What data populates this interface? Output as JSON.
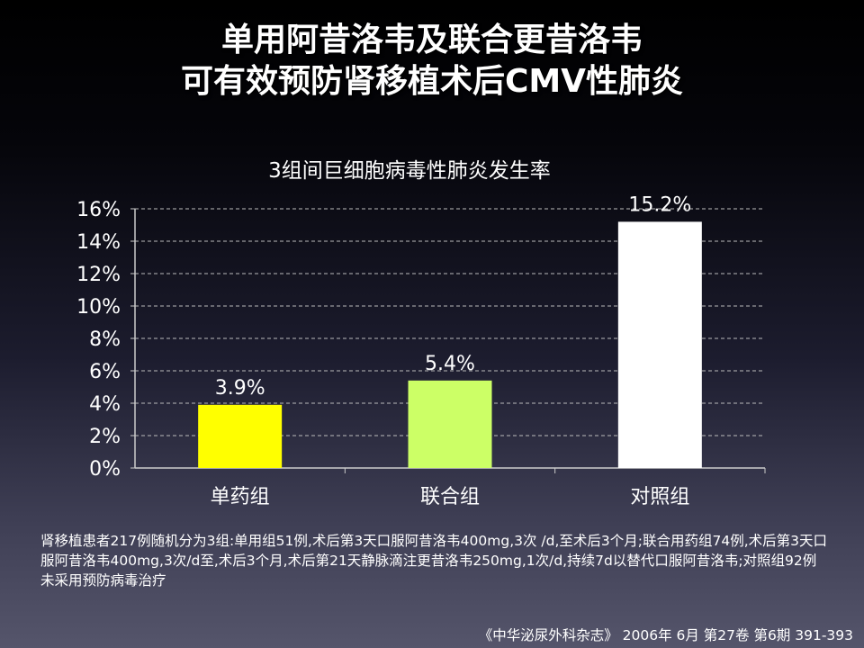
{
  "slide": {
    "title_line1": "单用阿昔洛韦及联合更昔洛韦",
    "title_line2": "可有效预防肾移植术后CMV性肺炎"
  },
  "chart_data": {
    "type": "bar",
    "title": "3组间巨细胞病毒性肺炎发生率",
    "categories": [
      "单药组",
      "联合组",
      "对照组"
    ],
    "values": [
      3.9,
      5.4,
      15.2
    ],
    "data_labels": [
      "3.9%",
      "5.4%",
      "15.2%"
    ],
    "bar_colors": [
      "#ffff00",
      "#ccff66",
      "#ffffff"
    ],
    "ylim": [
      0,
      16
    ],
    "yticks": [
      0,
      2,
      4,
      6,
      8,
      10,
      12,
      14,
      16
    ],
    "ytick_labels": [
      "0%",
      "2%",
      "4%",
      "6%",
      "8%",
      "10%",
      "12%",
      "14%",
      "16%"
    ],
    "grid": true,
    "legend": "none"
  },
  "note": "肾移植患者217例随机分为3组:单用组51例,术后第3天口服阿昔洛韦400mg,3次 /d,至术后3个月;联合用药组74例,术后第3天口服阿昔洛韦400mg,3次/d至,术后3个月,术后第21天静脉滴注更昔洛韦250mg,1次/d,持续7d以替代口服阿昔洛韦;对照组92例未采用预防病毒治疗",
  "source": "《中华泌尿外科杂志》 2006年 6月 第27卷 第6期 391-393"
}
